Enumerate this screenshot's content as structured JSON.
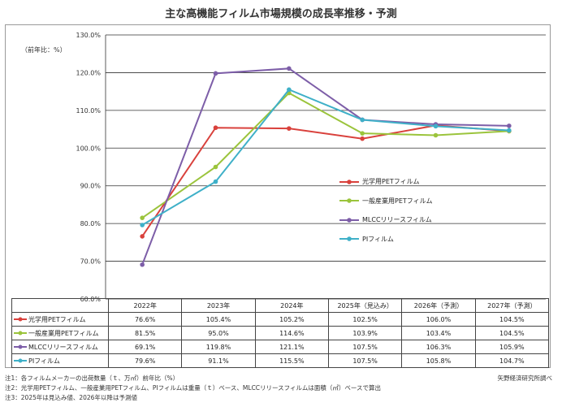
{
  "title": "主な高機能フィルム市場規模の成長率推移・予測",
  "y_unit_label": "（前年比：%）",
  "chart_data": {
    "type": "line",
    "categories": [
      "2022年",
      "2023年",
      "2024年",
      "2025年（見込み）",
      "2026年（予測）",
      "2027年（予測）"
    ],
    "ylim": [
      60,
      130
    ],
    "yticks": [
      "130.0%",
      "120.0%",
      "110.0%",
      "100.0%",
      "90.0%",
      "80.0%",
      "70.0%",
      "60.0%"
    ],
    "ytick_values": [
      130,
      120,
      110,
      100,
      90,
      80,
      70,
      60
    ],
    "grid": true,
    "legend_position": "center-right",
    "series": [
      {
        "name": "光学用PETフィルム",
        "color": "#d9413c",
        "values": [
          76.6,
          105.4,
          105.2,
          102.5,
          106.0,
          104.5
        ],
        "labels": [
          "76.6%",
          "105.4%",
          "105.2%",
          "102.5%",
          "106.0%",
          "104.5%"
        ]
      },
      {
        "name": "一般産業用PETフィルム",
        "color": "#9bc43c",
        "values": [
          81.5,
          95.0,
          114.6,
          103.9,
          103.4,
          104.5
        ],
        "labels": [
          "81.5%",
          "95.0%",
          "114.6%",
          "103.9%",
          "103.4%",
          "104.5%"
        ]
      },
      {
        "name": "MLCCリリースフィルム",
        "color": "#7d5ea8",
        "values": [
          69.1,
          119.8,
          121.1,
          107.5,
          106.3,
          105.9
        ],
        "labels": [
          "69.1%",
          "119.8%",
          "121.1%",
          "107.5%",
          "106.3%",
          "105.9%"
        ]
      },
      {
        "name": "PIフィルム",
        "color": "#3fb0c8",
        "values": [
          79.6,
          91.1,
          115.5,
          107.5,
          105.8,
          104.7
        ],
        "labels": [
          "79.6%",
          "91.1%",
          "115.5%",
          "107.5%",
          "105.8%",
          "104.7%"
        ]
      }
    ]
  },
  "notes": [
    "注1：各フィルムメーカーの出荷数量（ｔ、万㎡）前年比（%）",
    "注2：光学用PETフィルム、一般産業用PETフィルム、PIフィルムは重量（ｔ）ベース、MLCCリリースフィルムは面積（㎡）ベースで算出",
    "注3：2025年は見込み値、2026年以降は予測値"
  ],
  "source": "矢野経済研究所調べ"
}
